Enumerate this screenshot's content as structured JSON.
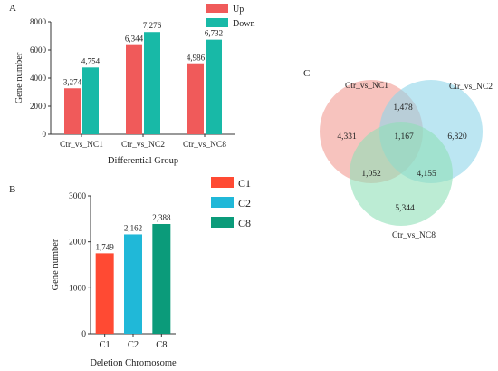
{
  "chart_data": [
    {
      "panel": "A",
      "type": "bar",
      "xlabel": "Differential Group",
      "ylabel": "Gene number",
      "categories": [
        "Ctr_vs_NC1",
        "Ctr_vs_NC2",
        "Ctr_vs_NC8"
      ],
      "series": [
        {
          "name": "Up",
          "values": [
            3274,
            6344,
            4986
          ],
          "labels": [
            "3,274",
            "6,344",
            "4,986"
          ],
          "color": "#f05a5a"
        },
        {
          "name": "Down",
          "values": [
            4754,
            7276,
            6732
          ],
          "labels": [
            "4,754",
            "7,276",
            "6,732"
          ],
          "color": "#18b9a7"
        }
      ],
      "ylim": [
        0,
        8000
      ],
      "yticks": [
        "0",
        "2000",
        "4000",
        "6000",
        "8000"
      ],
      "legend": "top-right",
      "grid": false
    },
    {
      "panel": "B",
      "type": "bar",
      "xlabel": "Deletion Chromosome",
      "ylabel": "Gene number",
      "categories": [
        "C1",
        "C2",
        "C8"
      ],
      "values": [
        1749,
        2162,
        2388
      ],
      "labels": [
        "1,749",
        "2,162",
        "2,388"
      ],
      "colors": [
        "#ff4a33",
        "#20b8d8",
        "#0b9b7a"
      ],
      "legend_entries": [
        "C1",
        "C2",
        "C8"
      ],
      "ylim": [
        0,
        3000
      ],
      "yticks": [
        "0",
        "1000",
        "2000",
        "3000"
      ],
      "legend": "right",
      "grid": false
    },
    {
      "panel": "C",
      "type": "venn",
      "sets": [
        {
          "name": "Ctr_vs_NC1",
          "color": "#f29b93"
        },
        {
          "name": "Ctr_vs_NC2",
          "color": "#8fd5ea"
        },
        {
          "name": "Ctr_vs_NC8",
          "color": "#8fe0b8"
        }
      ],
      "regions": {
        "only_NC1": "4,331",
        "only_NC2": "6,820",
        "only_NC8": "5,344",
        "NC1_NC2": "1,478",
        "NC1_NC8": "1,052",
        "NC2_NC8": "4,155",
        "all": "1,167"
      }
    }
  ]
}
